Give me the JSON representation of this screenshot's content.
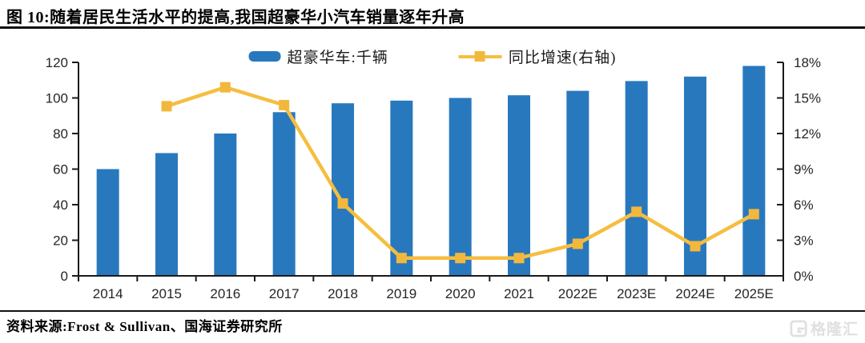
{
  "page": {
    "title": "图 10:随着居民生活水平的提高,我国超豪华小汽车销量逐年升高",
    "source_note": "资料来源:Frost & Sullivan、国海证券研究所",
    "watermark_text": "格隆汇"
  },
  "colors": {
    "bar": "#2878BE",
    "line": "#F5BE3F",
    "marker": "#F2B83C",
    "axis": "#1a1a1a",
    "tick_text": "#262626",
    "watermark": "#e0e0e0"
  },
  "chart_data": {
    "type": "bar",
    "combo": "bar+line",
    "title": "图 10:随着居民生活水平的提高,我国超豪华小汽车销量逐年升高",
    "categories": [
      "2014",
      "2015",
      "2016",
      "2017",
      "2018",
      "2019",
      "2020",
      "2021",
      "2022E",
      "2023E",
      "2024E",
      "2025E"
    ],
    "series": [
      {
        "name": "超豪华车:千辆",
        "type": "bar",
        "axis": "left",
        "values": [
          60,
          69,
          80,
          92,
          97,
          98.5,
          100,
          101.5,
          104,
          109.5,
          112,
          118
        ]
      },
      {
        "name": "同比增速(右轴)",
        "type": "line",
        "axis": "right",
        "unit": "%",
        "values": [
          null,
          14.3,
          15.9,
          14.4,
          6.1,
          1.5,
          1.5,
          1.5,
          2.7,
          5.4,
          2.5,
          5.2
        ]
      }
    ],
    "left_axis": {
      "min": 0,
      "max": 120,
      "ticks": [
        "0",
        "20",
        "40",
        "60",
        "80",
        "100",
        "120"
      ]
    },
    "right_axis": {
      "min": 0,
      "max": 18,
      "ticks": [
        "0%",
        "3%",
        "6%",
        "9%",
        "12%",
        "15%",
        "18%"
      ]
    },
    "legend_position": "top-center",
    "grid": false
  }
}
